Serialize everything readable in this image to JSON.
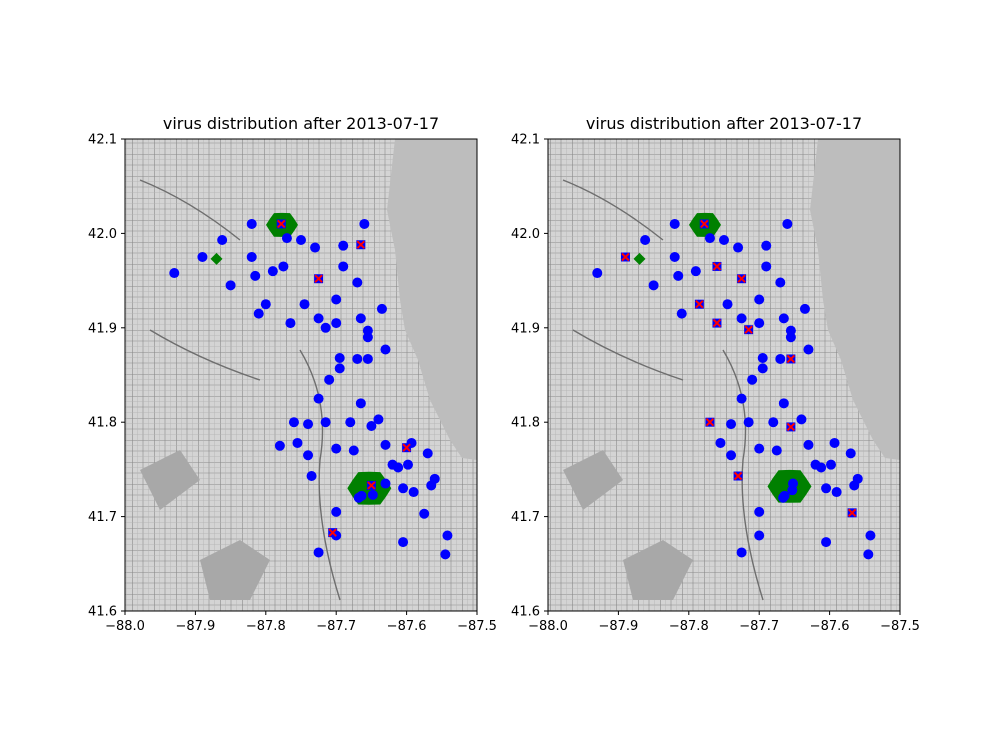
{
  "chart_data": [
    {
      "type": "scatter",
      "title": "virus distribution after 2013-07-17",
      "xlabel": "",
      "ylabel": "",
      "xlim": [
        -88.0,
        -87.5
      ],
      "ylim": [
        41.6,
        42.1
      ],
      "x_ticks": [
        "−88.0",
        "−87.9",
        "−87.8",
        "−87.7",
        "−87.6",
        "−87.5"
      ],
      "x_tick_values": [
        -88.0,
        -87.9,
        -87.8,
        -87.7,
        -87.6,
        -87.5
      ],
      "y_ticks": [
        "41.6",
        "41.7",
        "41.8",
        "41.9",
        "42.0",
        "42.1"
      ],
      "y_tick_values": [
        41.6,
        41.7,
        41.8,
        41.9,
        42.0,
        42.1
      ],
      "background": "map of Chicago",
      "grid": false,
      "series": [
        {
          "marker": "circle",
          "color": "#0000ff",
          "points": [
            [
              -87.93,
              41.958
            ],
            [
              -87.89,
              41.975
            ],
            [
              -87.862,
              41.993
            ],
            [
              -87.85,
              41.945
            ],
            [
              -87.82,
              41.975
            ],
            [
              -87.82,
              42.01
            ],
            [
              -87.815,
              41.955
            ],
            [
              -87.81,
              41.915
            ],
            [
              -87.8,
              41.925
            ],
            [
              -87.79,
              41.96
            ],
            [
              -87.77,
              41.995
            ],
            [
              -87.775,
              41.965
            ],
            [
              -87.765,
              41.905
            ],
            [
              -87.75,
              41.993
            ],
            [
              -87.745,
              41.925
            ],
            [
              -87.73,
              41.985
            ],
            [
              -87.725,
              41.91
            ],
            [
              -87.715,
              41.9
            ],
            [
              -87.7,
              41.93
            ],
            [
              -87.7,
              41.905
            ],
            [
              -87.69,
              41.987
            ],
            [
              -87.69,
              41.965
            ],
            [
              -87.67,
              41.948
            ],
            [
              -87.665,
              41.91
            ],
            [
              -87.66,
              42.01
            ],
            [
              -87.655,
              41.897
            ],
            [
              -87.655,
              41.89
            ],
            [
              -87.635,
              41.92
            ],
            [
              -87.63,
              41.877
            ],
            [
              -87.695,
              41.868
            ],
            [
              -87.695,
              41.857
            ],
            [
              -87.71,
              41.845
            ],
            [
              -87.67,
              41.867
            ],
            [
              -87.655,
              41.867
            ],
            [
              -87.725,
              41.825
            ],
            [
              -87.76,
              41.8
            ],
            [
              -87.74,
              41.798
            ],
            [
              -87.715,
              41.8
            ],
            [
              -87.68,
              41.8
            ],
            [
              -87.7,
              41.772
            ],
            [
              -87.675,
              41.77
            ],
            [
              -87.755,
              41.778
            ],
            [
              -87.78,
              41.775
            ],
            [
              -87.74,
              41.765
            ],
            [
              -87.735,
              41.743
            ],
            [
              -87.64,
              41.803
            ],
            [
              -87.65,
              41.796
            ],
            [
              -87.665,
              41.82
            ],
            [
              -87.63,
              41.776
            ],
            [
              -87.62,
              41.755
            ],
            [
              -87.612,
              41.752
            ],
            [
              -87.598,
              41.755
            ],
            [
              -87.593,
              41.778
            ],
            [
              -87.57,
              41.767
            ],
            [
              -87.56,
              41.74
            ],
            [
              -87.565,
              41.733
            ],
            [
              -87.63,
              41.735
            ],
            [
              -87.605,
              41.73
            ],
            [
              -87.59,
              41.726
            ],
            [
              -87.575,
              41.703
            ],
            [
              -87.542,
              41.68
            ],
            [
              -87.545,
              41.66
            ],
            [
              -87.605,
              41.673
            ],
            [
              -87.7,
              41.705
            ],
            [
              -87.7,
              41.68
            ],
            [
              -87.725,
              41.662
            ],
            [
              -87.648,
              41.723
            ],
            [
              -87.668,
              41.72
            ],
            [
              -87.664,
              41.722
            ]
          ]
        },
        {
          "marker": "x-square",
          "color": "#ff0000",
          "points": [
            [
              -87.778,
              42.01
            ],
            [
              -87.665,
              41.988
            ],
            [
              -87.725,
              41.952
            ],
            [
              -87.6,
              41.773
            ],
            [
              -87.65,
              41.733
            ],
            [
              -87.705,
              41.683
            ]
          ]
        },
        {
          "marker": "diamond",
          "color": "#008000",
          "points": [
            [
              -87.87,
              41.973
            ]
          ]
        }
      ],
      "regions": [
        {
          "shape": "blob",
          "color": "#008000",
          "center": [
            -87.777,
            42.009
          ]
        },
        {
          "shape": "blob",
          "color": "#008000",
          "center": [
            -87.653,
            41.73
          ]
        }
      ]
    },
    {
      "type": "scatter",
      "title": "virus distribution after 2013-07-17",
      "xlabel": "",
      "ylabel": "",
      "xlim": [
        -88.0,
        -87.5
      ],
      "ylim": [
        41.6,
        42.1
      ],
      "x_ticks": [
        "−88.0",
        "−87.9",
        "−87.8",
        "−87.7",
        "−87.6",
        "−87.5"
      ],
      "x_tick_values": [
        -88.0,
        -87.9,
        -87.8,
        -87.7,
        -87.6,
        -87.5
      ],
      "y_ticks": [
        "41.6",
        "41.7",
        "41.8",
        "41.9",
        "42.0",
        "42.1"
      ],
      "y_tick_values": [
        41.6,
        41.7,
        41.8,
        41.9,
        42.0,
        42.1
      ],
      "background": "map of Chicago",
      "grid": false,
      "series": [
        {
          "marker": "circle",
          "color": "#0000ff",
          "points": [
            [
              -87.93,
              41.958
            ],
            [
              -87.862,
              41.993
            ],
            [
              -87.85,
              41.945
            ],
            [
              -87.82,
              41.975
            ],
            [
              -87.82,
              42.01
            ],
            [
              -87.815,
              41.955
            ],
            [
              -87.81,
              41.915
            ],
            [
              -87.79,
              41.96
            ],
            [
              -87.77,
              41.995
            ],
            [
              -87.75,
              41.993
            ],
            [
              -87.745,
              41.925
            ],
            [
              -87.73,
              41.985
            ],
            [
              -87.725,
              41.91
            ],
            [
              -87.7,
              41.93
            ],
            [
              -87.7,
              41.905
            ],
            [
              -87.69,
              41.987
            ],
            [
              -87.69,
              41.965
            ],
            [
              -87.67,
              41.948
            ],
            [
              -87.665,
              41.91
            ],
            [
              -87.66,
              42.01
            ],
            [
              -87.655,
              41.897
            ],
            [
              -87.655,
              41.89
            ],
            [
              -87.635,
              41.92
            ],
            [
              -87.63,
              41.877
            ],
            [
              -87.695,
              41.868
            ],
            [
              -87.695,
              41.857
            ],
            [
              -87.71,
              41.845
            ],
            [
              -87.67,
              41.867
            ],
            [
              -87.725,
              41.825
            ],
            [
              -87.74,
              41.798
            ],
            [
              -87.715,
              41.8
            ],
            [
              -87.68,
              41.8
            ],
            [
              -87.7,
              41.772
            ],
            [
              -87.675,
              41.77
            ],
            [
              -87.755,
              41.778
            ],
            [
              -87.74,
              41.765
            ],
            [
              -87.64,
              41.803
            ],
            [
              -87.665,
              41.82
            ],
            [
              -87.63,
              41.776
            ],
            [
              -87.62,
              41.755
            ],
            [
              -87.612,
              41.752
            ],
            [
              -87.598,
              41.755
            ],
            [
              -87.593,
              41.778
            ],
            [
              -87.57,
              41.767
            ],
            [
              -87.56,
              41.74
            ],
            [
              -87.565,
              41.733
            ],
            [
              -87.605,
              41.73
            ],
            [
              -87.59,
              41.726
            ],
            [
              -87.542,
              41.68
            ],
            [
              -87.545,
              41.66
            ],
            [
              -87.605,
              41.673
            ],
            [
              -87.7,
              41.705
            ],
            [
              -87.7,
              41.68
            ],
            [
              -87.725,
              41.662
            ],
            [
              -87.664,
              41.722
            ],
            [
              -87.653,
              41.728
            ],
            [
              -87.652,
              41.735
            ],
            [
              -87.666,
              41.72
            ]
          ]
        },
        {
          "marker": "x-square",
          "color": "#ff0000",
          "points": [
            [
              -87.778,
              42.01
            ],
            [
              -87.89,
              41.975
            ],
            [
              -87.76,
              41.965
            ],
            [
              -87.725,
              41.952
            ],
            [
              -87.785,
              41.925
            ],
            [
              -87.76,
              41.905
            ],
            [
              -87.715,
              41.898
            ],
            [
              -87.655,
              41.867
            ],
            [
              -87.77,
              41.8
            ],
            [
              -87.655,
              41.795
            ],
            [
              -87.73,
              41.743
            ],
            [
              -87.568,
              41.704
            ]
          ]
        },
        {
          "marker": "diamond",
          "color": "#008000",
          "points": [
            [
              -87.87,
              41.973
            ]
          ]
        }
      ],
      "regions": [
        {
          "shape": "blob",
          "color": "#008000",
          "center": [
            -87.777,
            42.009
          ]
        },
        {
          "shape": "blob",
          "color": "#008000",
          "center": [
            -87.657,
            41.732
          ]
        }
      ]
    }
  ]
}
